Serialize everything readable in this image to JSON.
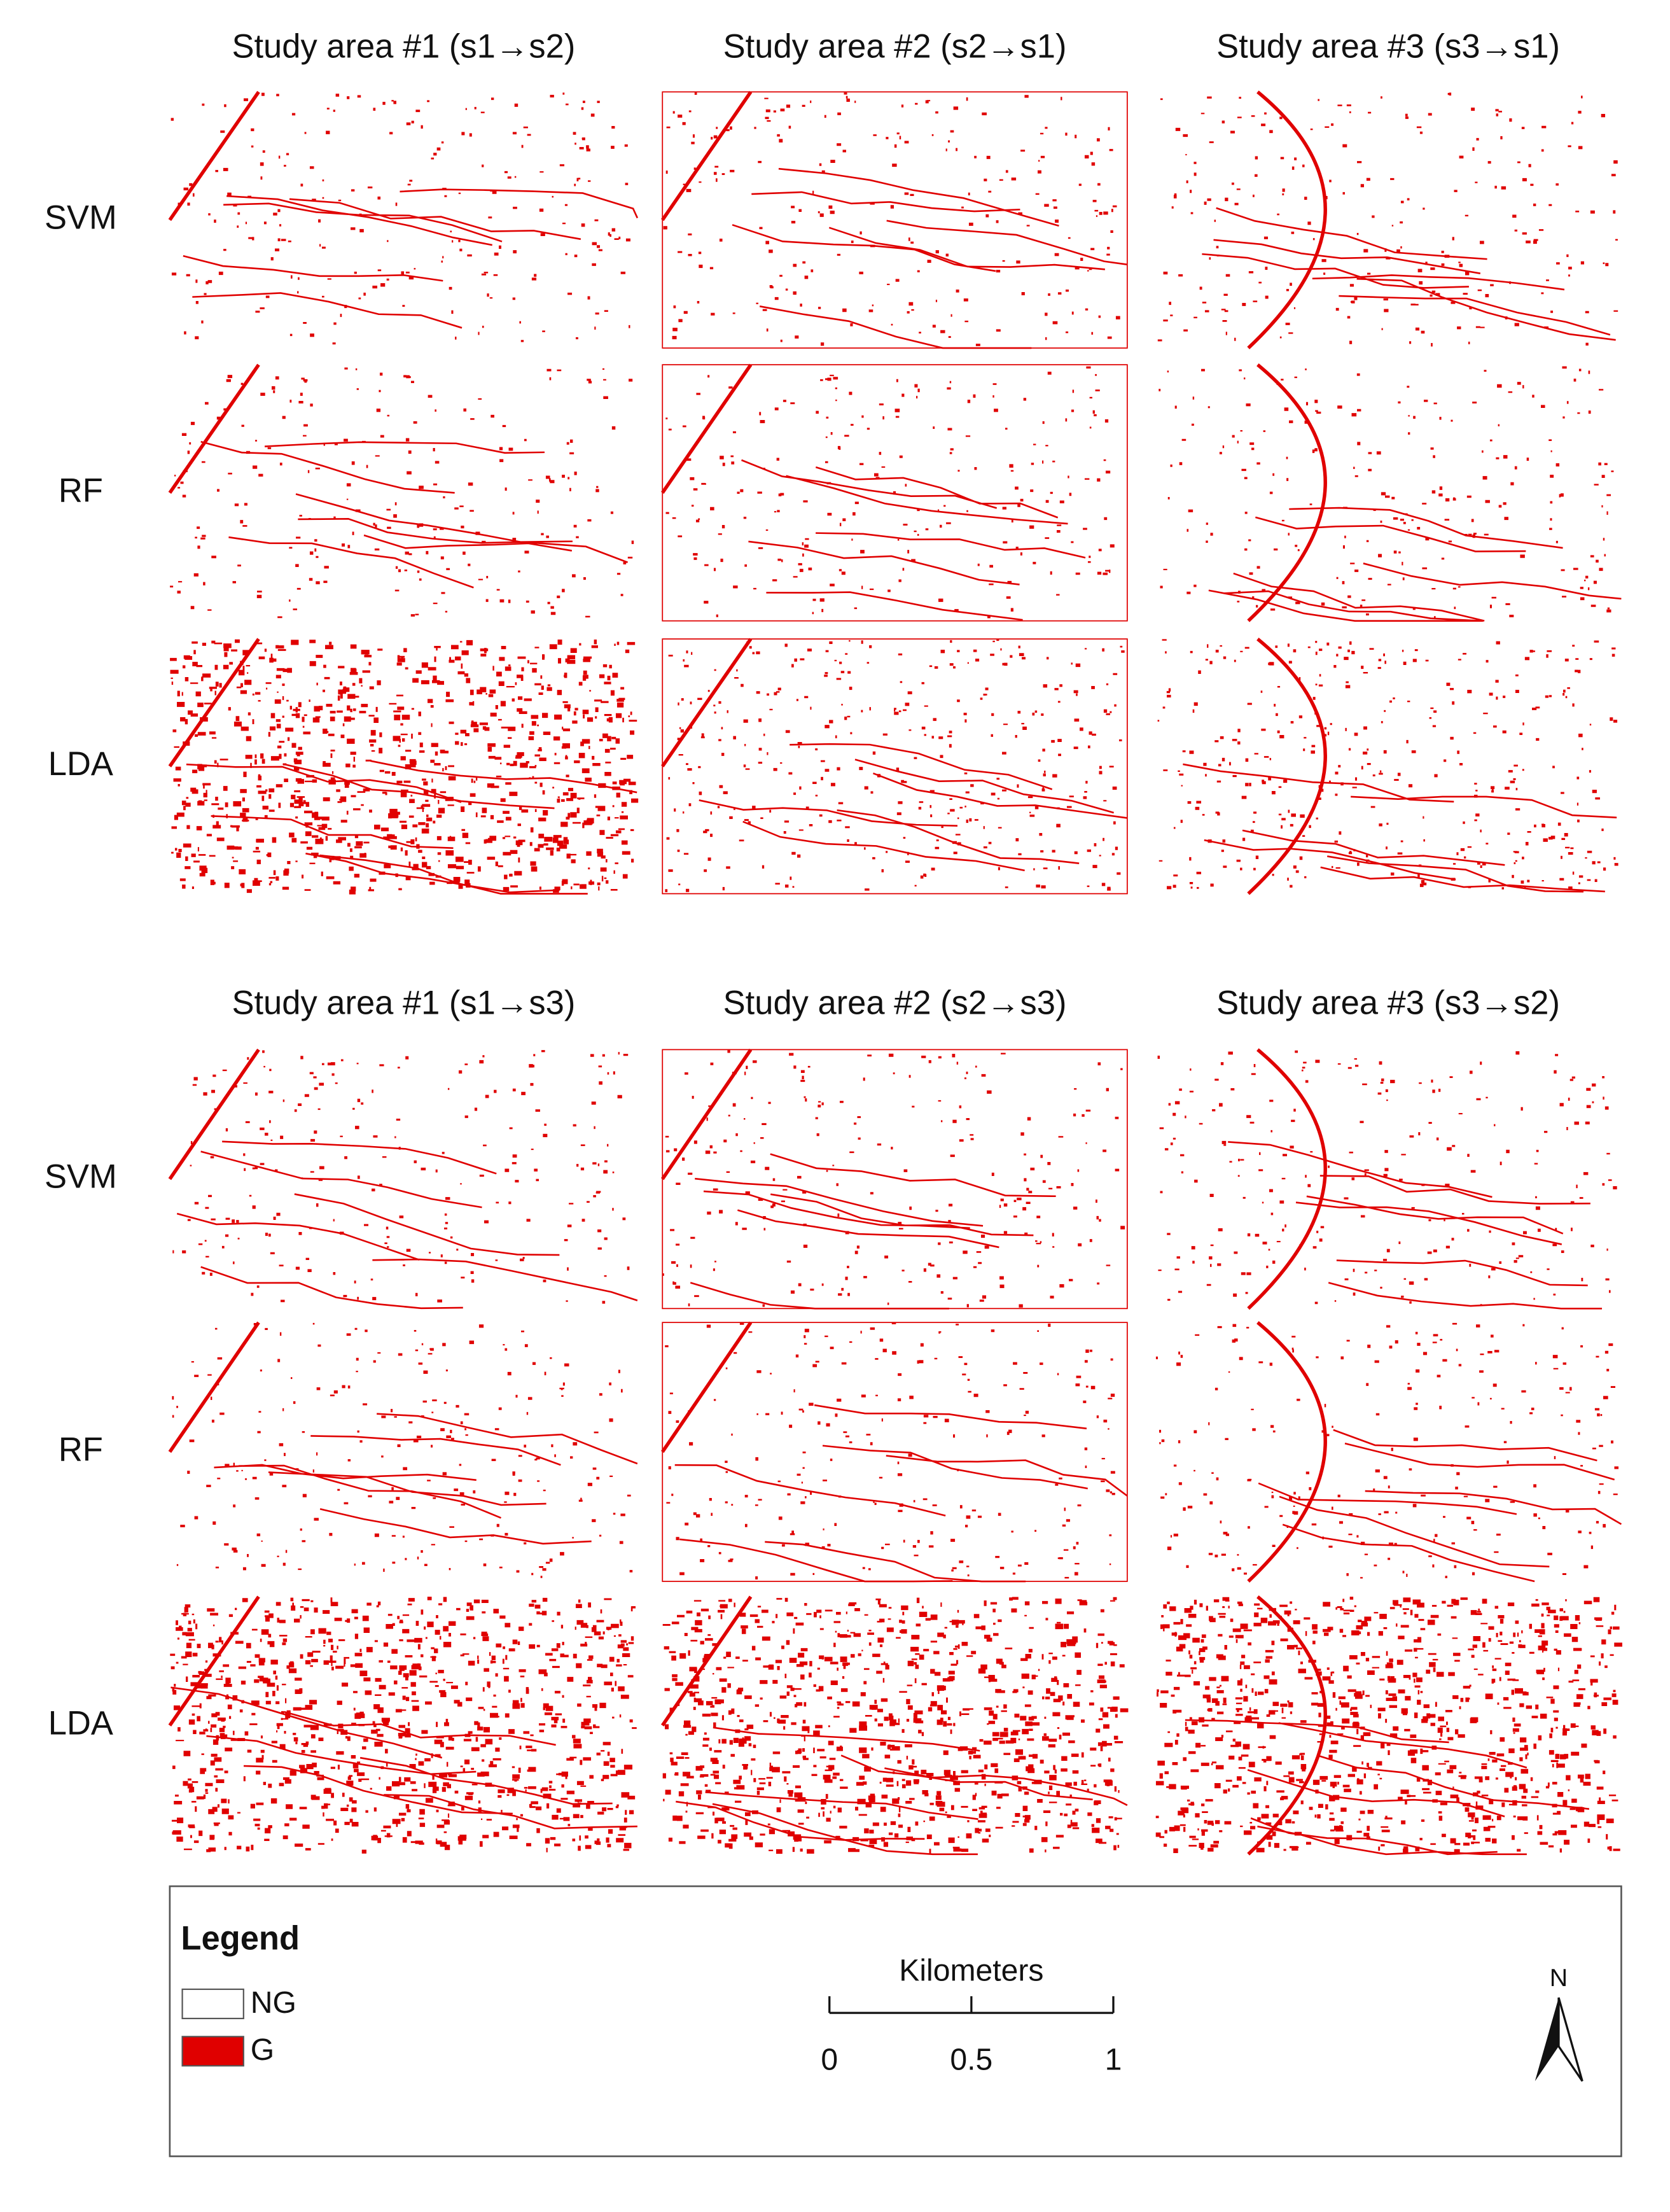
{
  "panel_groups": [
    {
      "headers": [
        "Study area #1 (s1→s2)",
        "Study area #2 (s2→s1)",
        "Study area #3 (s3→s1)"
      ],
      "rows": [
        "SVM",
        "RF",
        "LDA"
      ]
    },
    {
      "headers": [
        "Study area #1 (s1→s3)",
        "Study area #2 (s2→s3)",
        "Study area #3 (s3→s2)"
      ],
      "rows": [
        "SVM",
        "RF",
        "LDA"
      ]
    }
  ],
  "legend": {
    "title": "Legend",
    "items": [
      "NG",
      "G"
    ]
  },
  "scale_bar": {
    "title": "Kilometers",
    "ticks": [
      0,
      0.5,
      1
    ]
  },
  "north_arrow": "N"
}
